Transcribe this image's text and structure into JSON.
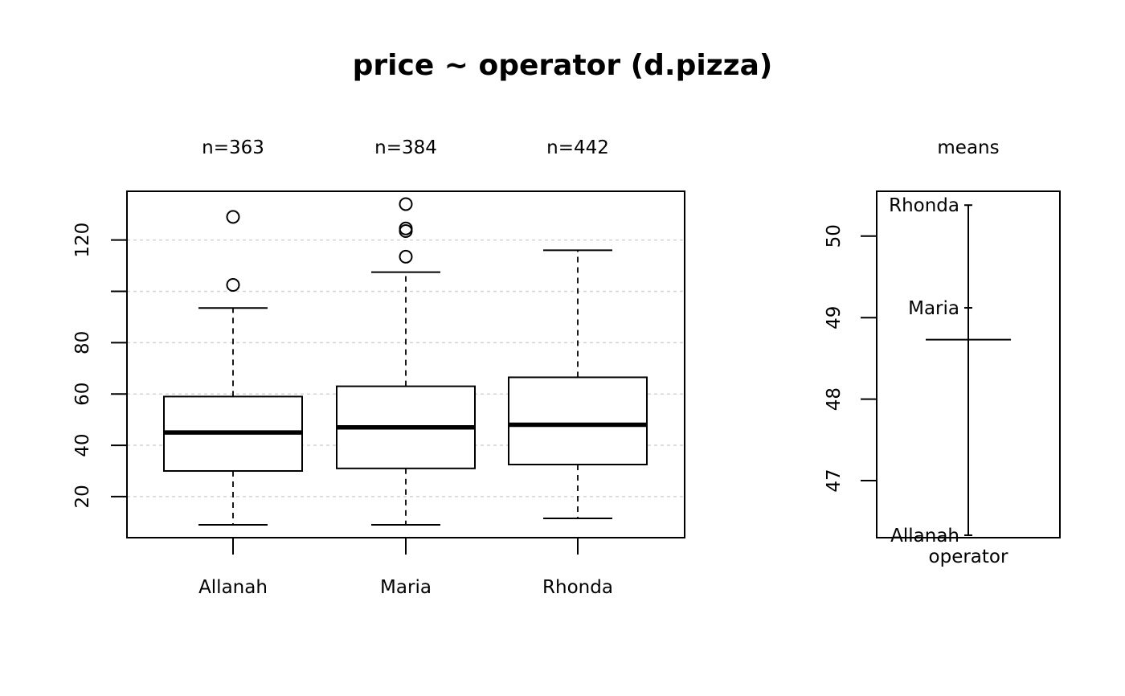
{
  "chart_data": [
    {
      "type": "box",
      "title": "price ~ operator (d.pizza)",
      "categories": [
        "Allanah",
        "Maria",
        "Rhonda"
      ],
      "counts": [
        "n=363",
        "n=384",
        "n=442"
      ],
      "ylim": [
        4,
        139
      ],
      "yticks": [
        20,
        40,
        60,
        80,
        100,
        120
      ],
      "ytick_labels": [
        "20",
        "40",
        "60",
        "80",
        "",
        "120"
      ],
      "grid": true,
      "boxes": [
        {
          "name": "Allanah",
          "whisker_low": 9.0,
          "q1": 30.0,
          "median": 45.0,
          "q3": 59.0,
          "whisker_high": 93.5,
          "outliers": [
            102.5,
            129.0
          ]
        },
        {
          "name": "Maria",
          "whisker_low": 9.0,
          "q1": 31.0,
          "median": 47.0,
          "q3": 63.0,
          "whisker_high": 107.5,
          "outliers": [
            113.5,
            123.5,
            124.5,
            134.0
          ]
        },
        {
          "name": "Rhonda",
          "whisker_low": 11.5,
          "q1": 32.5,
          "median": 48.0,
          "q3": 66.5,
          "whisker_high": 116.0,
          "outliers": []
        }
      ]
    },
    {
      "type": "means",
      "title": "means",
      "xlabel": "operator",
      "ylim": [
        46.3,
        50.55
      ],
      "yticks": [
        47,
        48,
        49,
        50
      ],
      "ytick_labels": [
        "47",
        "48",
        "49",
        "50"
      ],
      "grand_mean": 48.73,
      "means": [
        {
          "name": "Allanah",
          "value": 46.33
        },
        {
          "name": "Maria",
          "value": 49.12
        },
        {
          "name": "Rhonda",
          "value": 50.38
        }
      ]
    }
  ]
}
